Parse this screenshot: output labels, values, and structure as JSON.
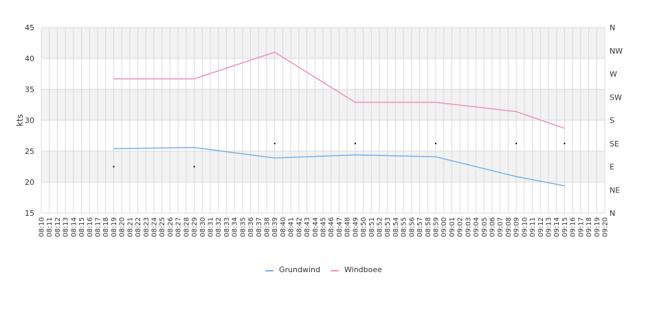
{
  "chart_data": {
    "type": "line",
    "title": "",
    "ylabel": "kts",
    "ylim": [
      15,
      45
    ],
    "yticks": [
      15,
      20,
      25,
      30,
      35,
      40,
      45
    ],
    "y2ticks": [
      "N",
      "NE",
      "E",
      "SE",
      "S",
      "SW",
      "W",
      "NW",
      "N"
    ],
    "x_start_minute": 490,
    "x_end_minute": 560,
    "x_labels": [
      "08:10",
      "08:11",
      "08:12",
      "08:13",
      "08:14",
      "08:15",
      "08:16",
      "08:17",
      "08:18",
      "08:19",
      "08:20",
      "08:21",
      "08:22",
      "08:23",
      "08:24",
      "08:25",
      "08:26",
      "08:27",
      "08:28",
      "08:29",
      "08:30",
      "08:31",
      "08:32",
      "08:33",
      "08:34",
      "08:35",
      "08:36",
      "08:37",
      "08:38",
      "08:39",
      "08:40",
      "08:41",
      "08:42",
      "08:43",
      "08:44",
      "08:45",
      "08:46",
      "08:47",
      "08:48",
      "08:49",
      "08:50",
      "08:51",
      "08:52",
      "08:53",
      "08:54",
      "08:55",
      "08:56",
      "08:57",
      "08:58",
      "08:59",
      "09:00",
      "09:01",
      "09:02",
      "09:03",
      "09:04",
      "09:05",
      "09:06",
      "09:07",
      "09:08",
      "09:09",
      "09:10",
      "09:11",
      "09:12",
      "09:13",
      "09:14",
      "09:15",
      "09:16",
      "09:17",
      "09:18",
      "09:19",
      "09:20"
    ],
    "series": [
      {
        "name": "Grundwind",
        "color": "#6fb1f0",
        "points": [
          [
            "08:19",
            25.4
          ],
          [
            "08:29",
            25.6
          ],
          [
            "08:39",
            23.9
          ],
          [
            "08:49",
            24.4
          ],
          [
            "08:59",
            24.1
          ],
          [
            "09:09",
            20.9
          ],
          [
            "09:15",
            19.4
          ]
        ]
      },
      {
        "name": "Windboee",
        "color": "#f08ec0",
        "points": [
          [
            "08:19",
            36.7
          ],
          [
            "08:29",
            36.7
          ],
          [
            "08:39",
            41.0
          ],
          [
            "08:49",
            32.9
          ],
          [
            "08:59",
            32.9
          ],
          [
            "09:09",
            31.4
          ],
          [
            "09:15",
            28.7
          ]
        ]
      }
    ],
    "direction_markers": [
      [
        "08:19",
        "E"
      ],
      [
        "08:29",
        "E"
      ],
      [
        "08:39",
        "SE"
      ],
      [
        "08:49",
        "SE"
      ],
      [
        "08:59",
        "SE"
      ],
      [
        "09:09",
        "SE"
      ],
      [
        "09:15",
        "SE"
      ]
    ],
    "grid": true,
    "legend_position": "bottom-center",
    "colors": {
      "band": "#f2f2f2",
      "grid": "#d9d9d9",
      "marker": "#000000"
    }
  }
}
